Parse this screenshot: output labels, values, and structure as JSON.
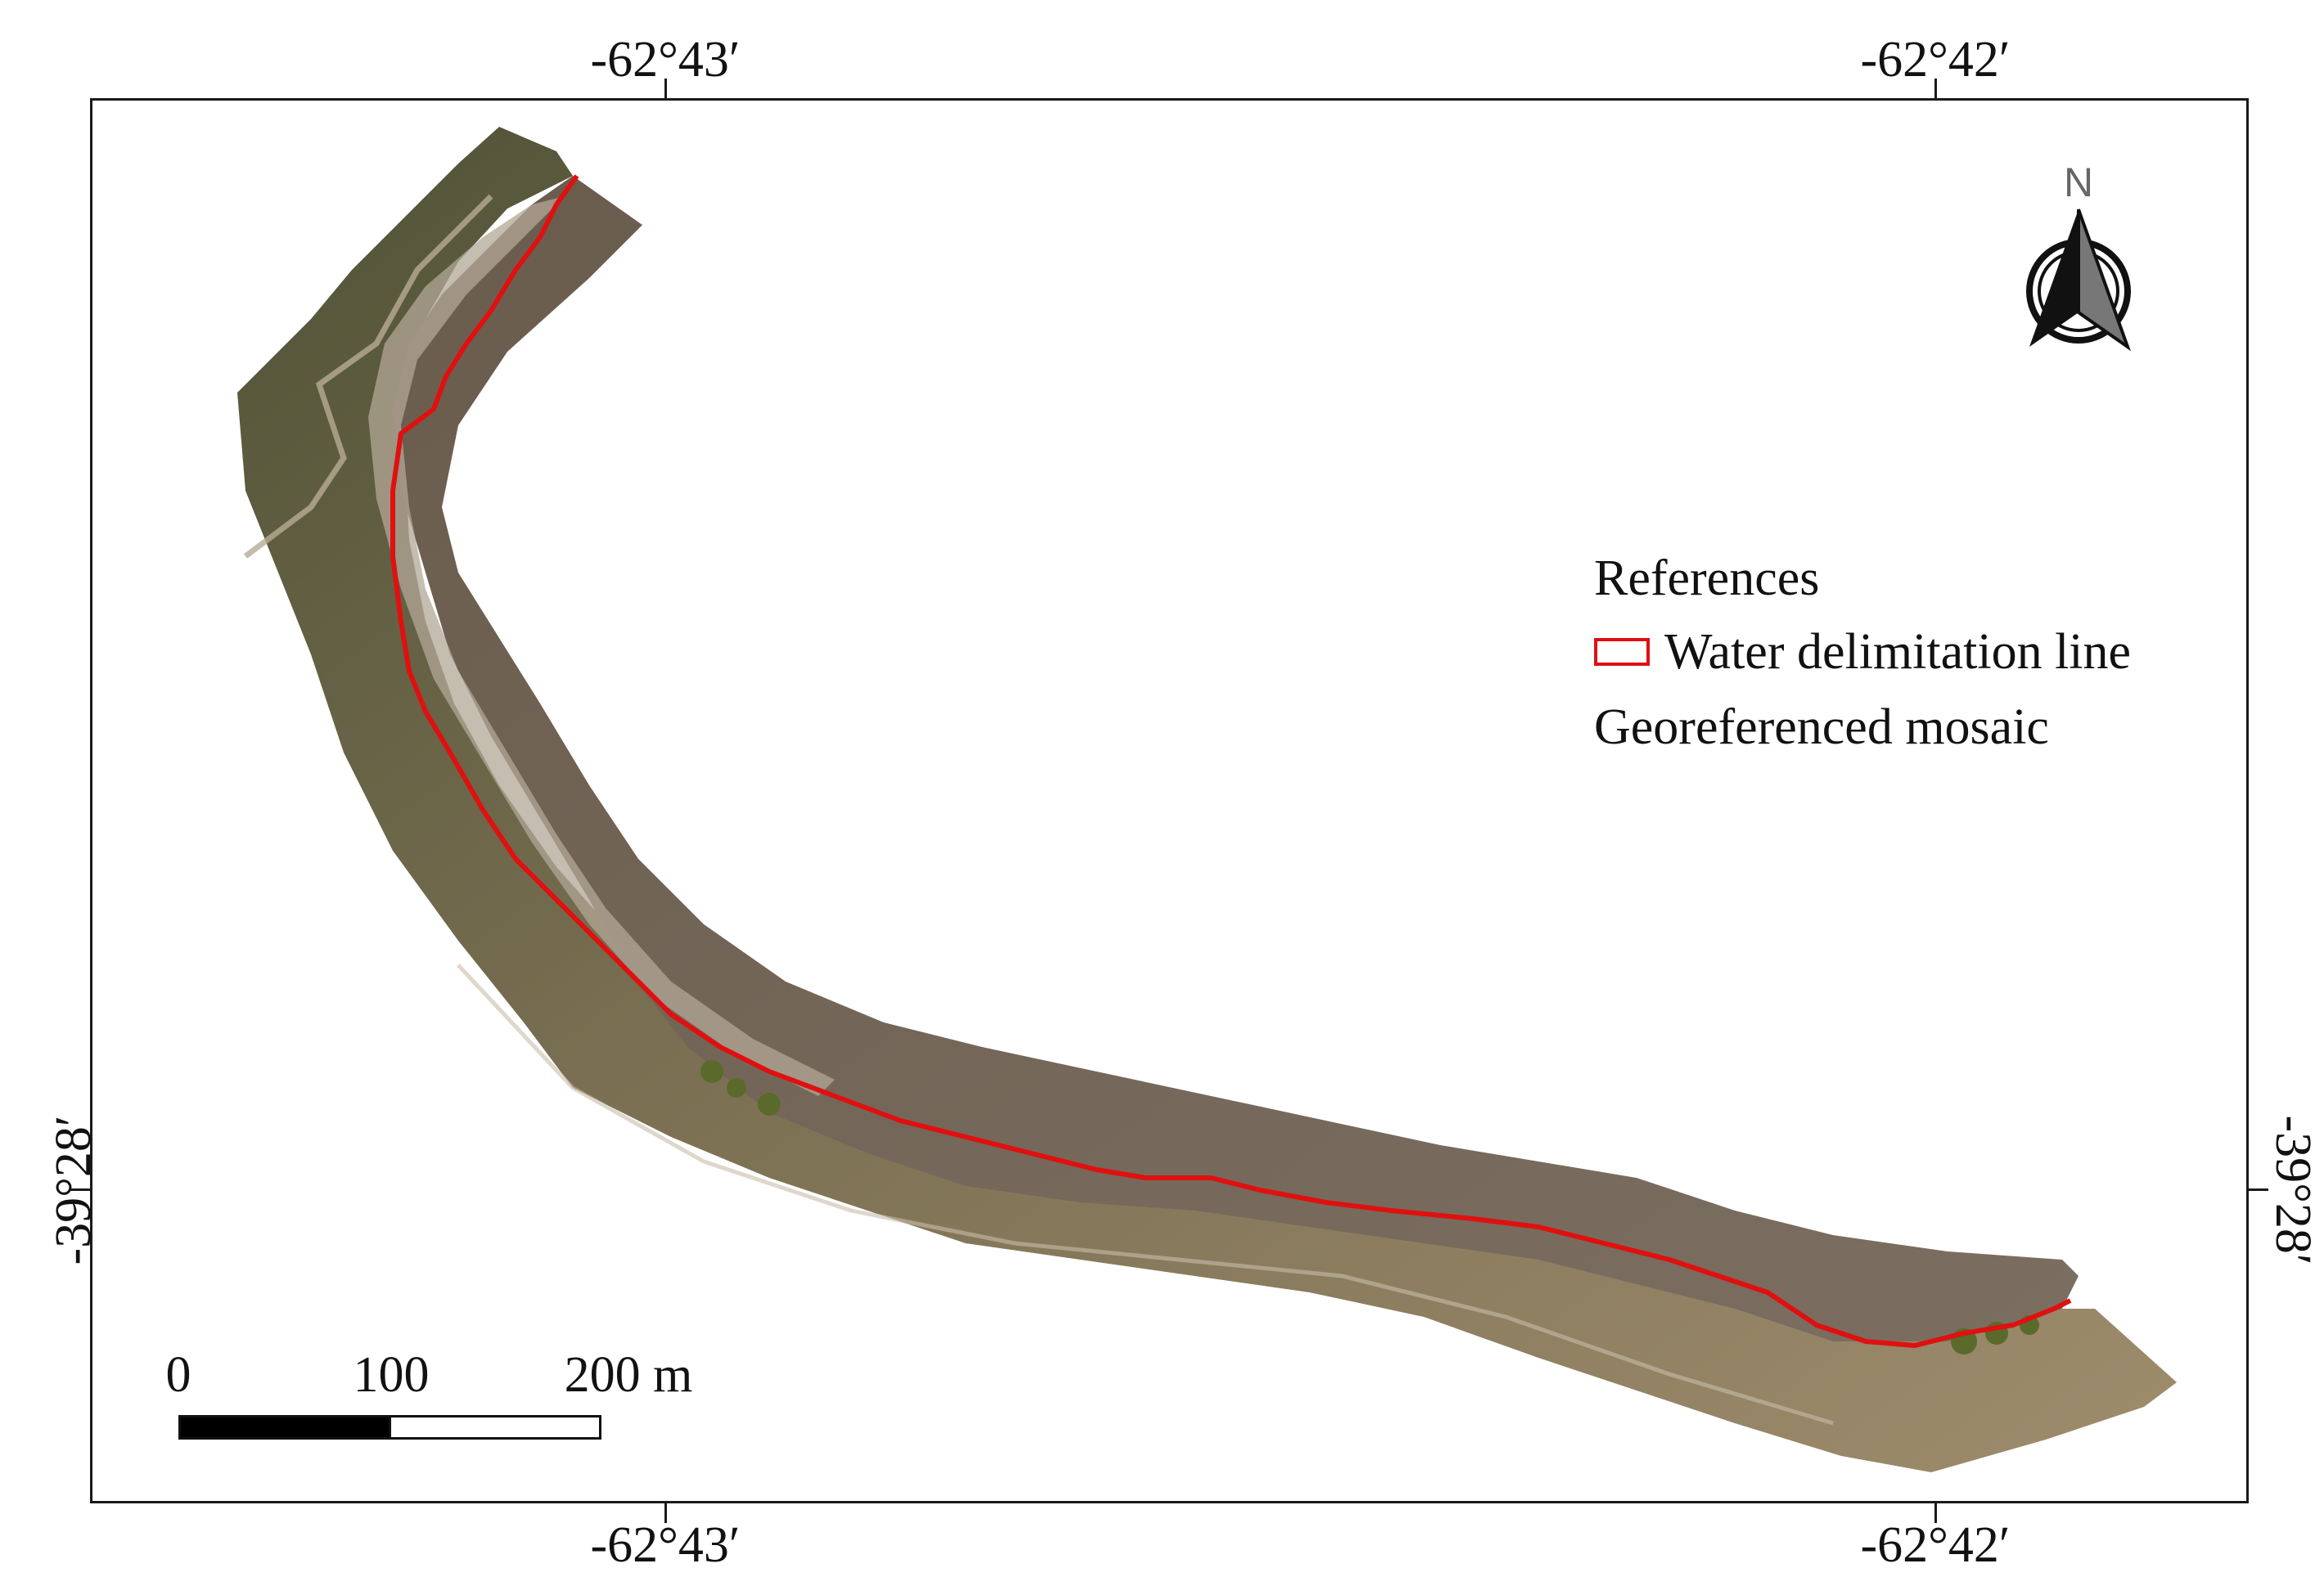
{
  "map": {
    "coords": {
      "top_left": "-62°43′",
      "top_right": "-62°42′",
      "bottom_left": "-62°43′",
      "bottom_right": "-62°42′",
      "left": "-39°28′",
      "right": "-39°28′"
    },
    "legend": {
      "title": "References",
      "line_label": "Water delimitation line",
      "mosaic_label": "Georeferenced mosaic",
      "line_color": "#e01010"
    },
    "scale": {
      "label_0": "0",
      "label_100": "100",
      "label_200": "200 m"
    },
    "north": {
      "letter": "N"
    },
    "colors": {
      "water": "#6e5f4e",
      "shore": "#a59480",
      "vegetation": "#5c5a3c",
      "line": "#e01010"
    }
  }
}
